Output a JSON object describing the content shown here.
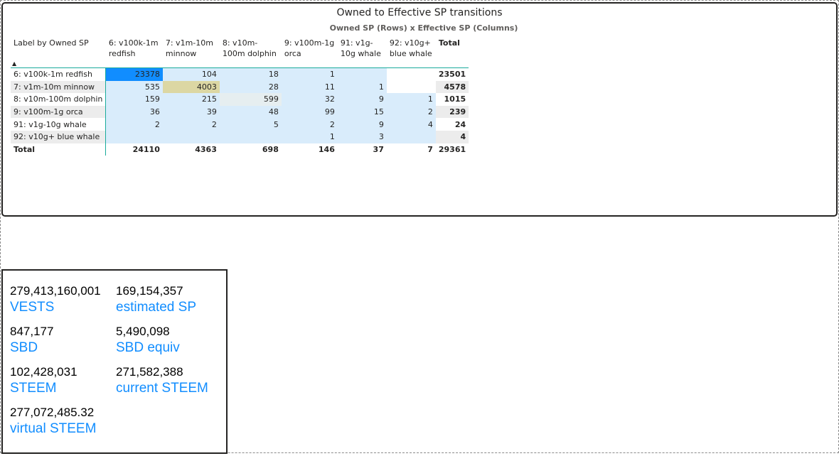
{
  "matrix": {
    "title": "Owned to Effective SP transitions",
    "subtitle": "Owned SP (Rows) x Effective SP (Columns)",
    "row_header": "Label by Owned SP",
    "sort_indicator": "▲",
    "columns": [
      "6: v100k-1m redfish",
      "7: v1m-10m minnow",
      "8: v10m-100m dolphin",
      "9: v100m-1g orca",
      "91: v1g-10g whale",
      "92: v10g+ blue whale",
      "Total"
    ],
    "rows": [
      {
        "label": "6: v100k-1m redfish",
        "cells": [
          "23378",
          "104",
          "18",
          "1",
          "",
          "",
          "23501"
        ]
      },
      {
        "label": "7: v1m-10m minnow",
        "cells": [
          "535",
          "4003",
          "28",
          "11",
          "1",
          "",
          "4578"
        ]
      },
      {
        "label": "8: v10m-100m dolphin",
        "cells": [
          "159",
          "215",
          "599",
          "32",
          "9",
          "1",
          "1015"
        ]
      },
      {
        "label": "9: v100m-1g orca",
        "cells": [
          "36",
          "39",
          "48",
          "99",
          "15",
          "2",
          "239"
        ]
      },
      {
        "label": "91: v1g-10g whale",
        "cells": [
          "2",
          "2",
          "5",
          "2",
          "9",
          "4",
          "24"
        ]
      },
      {
        "label": "92: v10g+ blue whale",
        "cells": [
          "",
          "",
          "",
          "1",
          "3",
          "",
          "4"
        ]
      }
    ],
    "total_row": {
      "label": "Total",
      "cells": [
        "24110",
        "4363",
        "698",
        "146",
        "37",
        "7",
        "29361"
      ]
    },
    "colors": {
      "base_fill": "#d9ecfb",
      "highlight_max": "#118dff",
      "highlight_second": "#dcd7a3",
      "mid_fill": "#e6eef0",
      "total_fill": "#ececec",
      "accent_line": "#1aab9b"
    }
  },
  "cards": [
    {
      "value": "279,413,160,001",
      "label": "VESTS"
    },
    {
      "value": "169,154,357",
      "label": "estimated SP"
    },
    {
      "value": "847,177",
      "label": "SBD"
    },
    {
      "value": "5,490,098",
      "label": "SBD equiv"
    },
    {
      "value": "102,428,031",
      "label": "STEEM"
    },
    {
      "value": "271,582,388",
      "label": "current STEEM"
    },
    {
      "value": "277,072,485.32",
      "label": "virtual STEEM"
    }
  ]
}
